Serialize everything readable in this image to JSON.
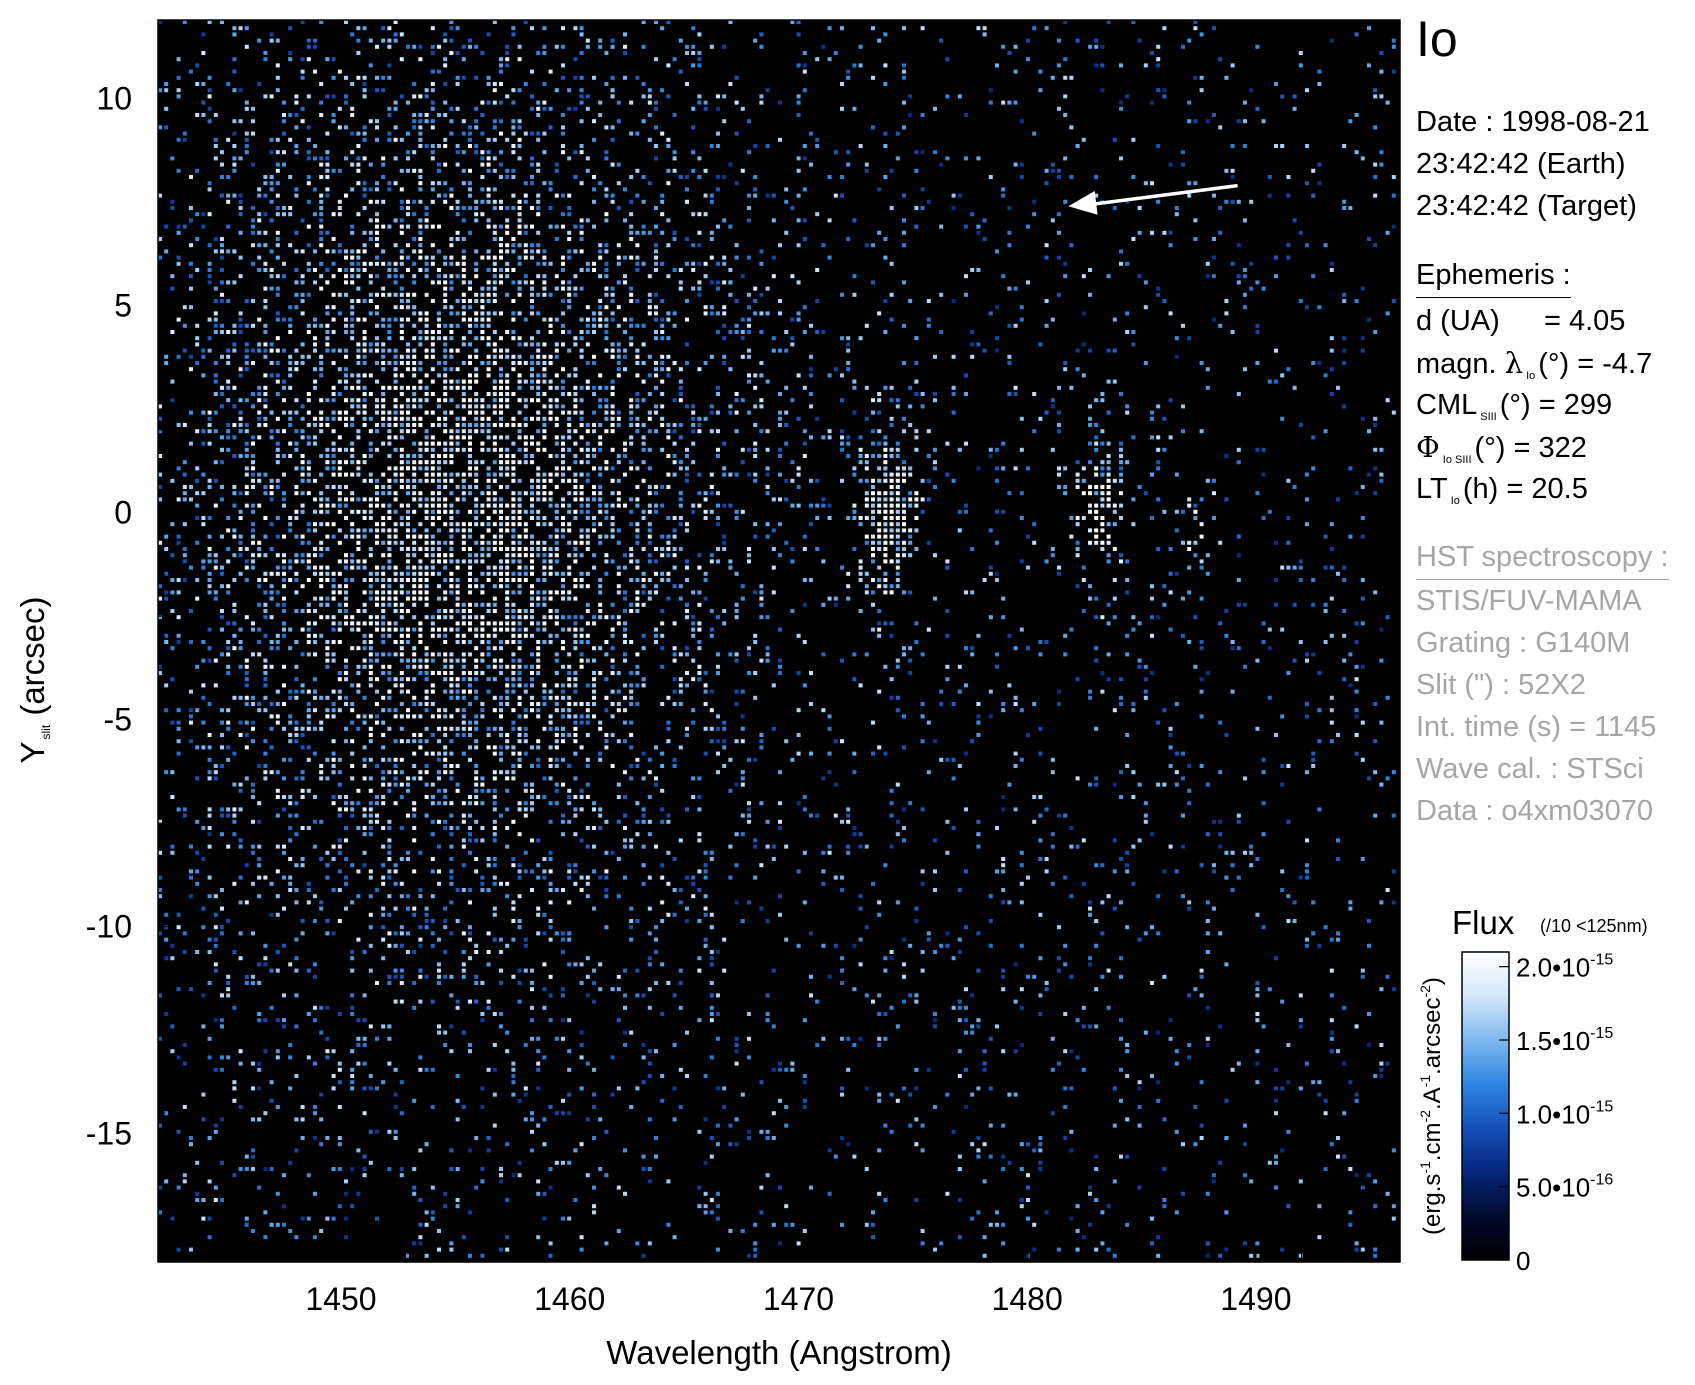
{
  "chart_data": {
    "type": "heatmap",
    "title": "Io",
    "xlabel": "Wavelength (Angstrom)",
    "ylabel_main": "Y",
    "ylabel_sub": "slit",
    "ylabel_unit": "(arcsec)",
    "xlim": [
      1442,
      1496.3
    ],
    "ylim": [
      -18.1,
      11.9
    ],
    "x_ticks": [
      1450,
      1460,
      1470,
      1480,
      1490
    ],
    "x_tick_labels": [
      "1450",
      "1460",
      "1470",
      "1480",
      "1490"
    ],
    "y_ticks": [
      10,
      5,
      0,
      -5,
      -10,
      -15
    ],
    "y_tick_labels": [
      "10",
      "5",
      "0",
      "-5",
      "-10",
      "-15"
    ],
    "emission_regions": [
      {
        "x_center": 1455,
        "y_center": 0.5,
        "x_sigma": 7,
        "y_sigma": 6.5,
        "peak": 0.75
      },
      {
        "x_center": 1474,
        "y_center": -0.2,
        "x_sigma": 0.9,
        "y_sigma": 1.4,
        "peak": 1.0
      },
      {
        "x_center": 1483.3,
        "y_center": -0.1,
        "x_sigma": 0.7,
        "y_sigma": 1.2,
        "peak": 0.9
      },
      {
        "x_center": 1487.5,
        "y_center": -0.5,
        "x_sigma": 0.6,
        "y_sigma": 0.8,
        "peak": 0.4
      }
    ],
    "arrow": {
      "from": [
        1489.2,
        7.9
      ],
      "to": [
        1481.8,
        7.4
      ],
      "color": "#ffffff"
    },
    "colorbar": {
      "label": "Flux",
      "note": "(/10 <125nm)",
      "unit_label": "(erg.s-1.cm-2.A-1.arcsec-2)",
      "range": [
        0,
        2.1e-15
      ],
      "ticks": [
        {
          "value": 2e-15,
          "mantissa": "2.0",
          "exponent": "-15"
        },
        {
          "value": 1.5e-15,
          "mantissa": "1.5",
          "exponent": "-15"
        },
        {
          "value": 1e-15,
          "mantissa": "1.0",
          "exponent": "-15"
        },
        {
          "value": 5e-16,
          "mantissa": "5.0",
          "exponent": "-16"
        },
        {
          "value": 0,
          "mantissa": "0",
          "exponent": ""
        }
      ],
      "colors": [
        "#000000",
        "#010a2e",
        "#05267a",
        "#1550b8",
        "#2f86e0",
        "#7fb8ee",
        "#d4e8fa",
        "#ffffff"
      ]
    },
    "grid": false
  },
  "info": {
    "date_line": "Date : 1998-08-21",
    "earth_line": "23:42:42 (Earth)",
    "target_line": "23:42:42 (Target)",
    "ephemeris_header": "Ephemeris :",
    "d_label": "d (UA)",
    "d_value": "= 4.05",
    "magn_label": "magn.",
    "lambda_symbol": "λ",
    "lambda_sub": "Io",
    "magn_unit": "(°)",
    "magn_value": "= -4.7",
    "cml_label": "CML",
    "cml_sub": "SIII",
    "cml_unit": "(°)",
    "cml_value": "= 299",
    "phi_symbol": "Φ",
    "phi_sub": "Io SIII",
    "phi_unit": "(°)",
    "phi_value": "= 322",
    "lt_label": "LT",
    "lt_sub": "Io",
    "lt_unit": "(h)",
    "lt_value": "= 20.5",
    "hst_header": "HST spectroscopy :",
    "instrument": "STIS/FUV-MAMA",
    "grating": "Grating : G140M",
    "slit": "Slit (\") : 52X2",
    "int_time": "Int. time (s) = 1145",
    "wave_cal": "Wave cal. : STSci",
    "dataset": "Data : o4xm03070"
  }
}
